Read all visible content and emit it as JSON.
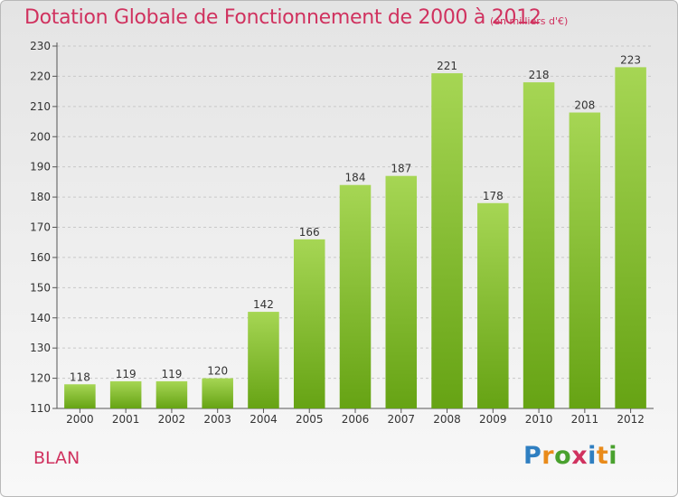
{
  "header": {
    "title": "Dotation Globale de Fonctionnement de 2000 à 2012",
    "unit": "(en milliers d'€)"
  },
  "footer": {
    "place": "BLAN",
    "brand_letters": [
      "P",
      "r",
      "o",
      "x",
      "i",
      "t",
      "i"
    ]
  },
  "colors": {
    "title": "#d0325f",
    "bar_light": "#a6d654",
    "bar_dark": "#66a314",
    "grid": "#c8c8c8",
    "brand": [
      "#2f7fc1",
      "#e98b1b",
      "#49a12e",
      "#d0325f",
      "#2f7fc1",
      "#e98b1b",
      "#49a12e"
    ]
  },
  "chart_data": {
    "type": "bar",
    "title": "Dotation Globale de Fonctionnement de 2000 à 2012",
    "categories": [
      "2000",
      "2001",
      "2002",
      "2003",
      "2004",
      "2005",
      "2006",
      "2007",
      "2008",
      "2009",
      "2010",
      "2011",
      "2012"
    ],
    "values": [
      118,
      119,
      119,
      120,
      142,
      166,
      184,
      187,
      221,
      178,
      218,
      208,
      223
    ],
    "ylim": [
      110,
      230
    ],
    "yticks": [
      110,
      120,
      130,
      140,
      150,
      160,
      170,
      180,
      190,
      200,
      210,
      220,
      230
    ],
    "grid": true,
    "data_labels": true
  }
}
